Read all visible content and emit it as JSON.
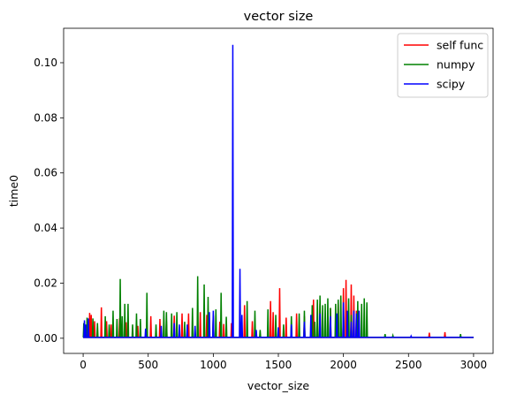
{
  "chart_data": {
    "type": "line",
    "title": "vector size",
    "xlabel": "vector_size",
    "ylabel": "time0",
    "xlim": [
      -150,
      3150
    ],
    "ylim": [
      -0.0055,
      0.1125
    ],
    "xticks": [
      0,
      500,
      1000,
      1500,
      2000,
      2500,
      3000
    ],
    "xtick_labels": [
      "0",
      "500",
      "1000",
      "1500",
      "2000",
      "2500",
      "3000"
    ],
    "yticks": [
      0.0,
      0.02,
      0.04,
      0.06,
      0.08,
      0.1
    ],
    "ytick_labels": [
      "0.00",
      "0.02",
      "0.04",
      "0.06",
      "0.08",
      "0.10"
    ],
    "grid": false,
    "legend_position": "top-right",
    "series": [
      {
        "name": "self func",
        "color": "#ff0000",
        "spikes": [
          [
            50,
            0.0092
          ],
          [
            62,
            0.0085
          ],
          [
            88,
            0.0062
          ],
          [
            140,
            0.0112
          ],
          [
            180,
            0.0062
          ],
          [
            215,
            0.005
          ],
          [
            280,
            0.0072
          ],
          [
            330,
            0.0058
          ],
          [
            420,
            0.0045
          ],
          [
            520,
            0.008
          ],
          [
            590,
            0.007
          ],
          [
            640,
            0.0062
          ],
          [
            700,
            0.0082
          ],
          [
            760,
            0.009
          ],
          [
            810,
            0.009
          ],
          [
            900,
            0.0095
          ],
          [
            950,
            0.0085
          ],
          [
            1000,
            0.008
          ],
          [
            1050,
            0.006
          ],
          [
            1080,
            0.0052
          ],
          [
            1140,
            0.0055
          ],
          [
            1240,
            0.012
          ],
          [
            1300,
            0.0062
          ],
          [
            1440,
            0.0135
          ],
          [
            1460,
            0.0095
          ],
          [
            1510,
            0.0182
          ],
          [
            1560,
            0.0075
          ],
          [
            1640,
            0.009
          ],
          [
            1700,
            0.008
          ],
          [
            1770,
            0.014
          ],
          [
            1820,
            0.0125
          ],
          [
            1900,
            0.011
          ],
          [
            1960,
            0.0135
          ],
          [
            2000,
            0.0182
          ],
          [
            2020,
            0.0212
          ],
          [
            2060,
            0.0195
          ],
          [
            2080,
            0.0155
          ],
          [
            2100,
            0.01
          ],
          [
            2660,
            0.002
          ],
          [
            2780,
            0.0022
          ]
        ]
      },
      {
        "name": "numpy",
        "color": "#008000",
        "spikes": [
          [
            5,
            0.0055
          ],
          [
            30,
            0.0075
          ],
          [
            75,
            0.0072
          ],
          [
            110,
            0.0055
          ],
          [
            170,
            0.008
          ],
          [
            200,
            0.005
          ],
          [
            230,
            0.01
          ],
          [
            260,
            0.007
          ],
          [
            285,
            0.0215
          ],
          [
            300,
            0.008
          ],
          [
            320,
            0.0125
          ],
          [
            345,
            0.0125
          ],
          [
            380,
            0.005
          ],
          [
            410,
            0.009
          ],
          [
            440,
            0.007
          ],
          [
            490,
            0.0165
          ],
          [
            560,
            0.005
          ],
          [
            620,
            0.01
          ],
          [
            640,
            0.0095
          ],
          [
            680,
            0.009
          ],
          [
            720,
            0.0095
          ],
          [
            780,
            0.006
          ],
          [
            840,
            0.011
          ],
          [
            880,
            0.0225
          ],
          [
            930,
            0.0195
          ],
          [
            960,
            0.015
          ],
          [
            1000,
            0.0085
          ],
          [
            1020,
            0.0105
          ],
          [
            1060,
            0.0165
          ],
          [
            1100,
            0.0078
          ],
          [
            1210,
            0.005
          ],
          [
            1260,
            0.0135
          ],
          [
            1320,
            0.01
          ],
          [
            1360,
            0.003
          ],
          [
            1420,
            0.0105
          ],
          [
            1480,
            0.0085
          ],
          [
            1540,
            0.005
          ],
          [
            1600,
            0.008
          ],
          [
            1660,
            0.009
          ],
          [
            1700,
            0.01
          ],
          [
            1760,
            0.012
          ],
          [
            1780,
            0.006
          ],
          [
            1800,
            0.014
          ],
          [
            1820,
            0.0155
          ],
          [
            1840,
            0.012
          ],
          [
            1860,
            0.0125
          ],
          [
            1880,
            0.0145
          ],
          [
            1900,
            0.011
          ],
          [
            1940,
            0.0125
          ],
          [
            1960,
            0.014
          ],
          [
            1980,
            0.0155
          ],
          [
            2000,
            0.01
          ],
          [
            2040,
            0.0145
          ],
          [
            2060,
            0.0085
          ],
          [
            2110,
            0.0135
          ],
          [
            2140,
            0.0125
          ],
          [
            2160,
            0.0145
          ],
          [
            2180,
            0.013
          ],
          [
            2320,
            0.0015
          ],
          [
            2380,
            0.001
          ],
          [
            2900,
            0.0015
          ]
        ]
      },
      {
        "name": "scipy",
        "color": "#0000ff",
        "spikes": [
          [
            10,
            0.0065
          ],
          [
            20,
            0.005
          ],
          [
            40,
            0.0072
          ],
          [
            480,
            0.0035
          ],
          [
            600,
            0.0045
          ],
          [
            700,
            0.0055
          ],
          [
            740,
            0.005
          ],
          [
            800,
            0.005
          ],
          [
            860,
            0.0045
          ],
          [
            970,
            0.0095
          ],
          [
            1000,
            0.01
          ],
          [
            1150,
            0.1065
          ],
          [
            1205,
            0.0252
          ],
          [
            1220,
            0.0085
          ],
          [
            1330,
            0.003
          ],
          [
            1500,
            0.004
          ],
          [
            1600,
            0.005
          ],
          [
            1700,
            0.006
          ],
          [
            1750,
            0.0085
          ],
          [
            1820,
            0.009
          ],
          [
            1900,
            0.008
          ],
          [
            1950,
            0.009
          ],
          [
            2000,
            0.013
          ],
          [
            2030,
            0.01
          ],
          [
            2060,
            0.006
          ],
          [
            2080,
            0.01
          ],
          [
            2100,
            0.009
          ],
          [
            2120,
            0.01
          ],
          [
            2520,
            0.0008
          ]
        ]
      }
    ]
  }
}
